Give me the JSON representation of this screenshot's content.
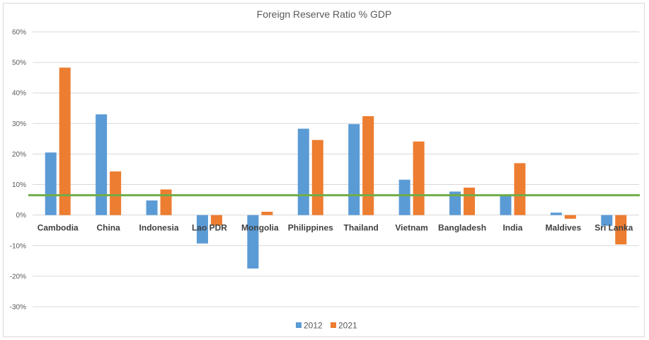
{
  "chart_data": {
    "type": "bar",
    "title": "Foreign Reserve Ratio % GDP",
    "xlabel": "",
    "ylabel": "",
    "categories": [
      "Cambodia",
      "China",
      "Indonesia",
      "Lao PDR",
      "Mongolia",
      "Philippines",
      "Thailand",
      "Vietnam",
      "Bangladesh",
      "India",
      "Maldives",
      "Sri Lanka"
    ],
    "series": [
      {
        "name": "2012",
        "color": "#5b9bd5",
        "values": [
          20.5,
          33.0,
          4.8,
          -9.3,
          -17.5,
          28.3,
          29.8,
          11.6,
          7.7,
          6.6,
          0.8,
          -3.5
        ]
      },
      {
        "name": "2021",
        "color": "#ed7d31",
        "values": [
          48.3,
          14.3,
          8.4,
          -3.4,
          1.1,
          24.6,
          32.4,
          24.1,
          9.0,
          17.0,
          -1.2,
          -9.6
        ]
      }
    ],
    "ylim": [
      -30,
      60
    ],
    "yticks": [
      -30,
      -20,
      -10,
      0,
      10,
      20,
      30,
      40,
      50,
      60
    ],
    "ytick_labels": [
      "-30%",
      "-20%",
      "-10%",
      "0%",
      "10%",
      "20%",
      "30%",
      "40%",
      "50%",
      "60%"
    ],
    "reference_line": {
      "value": 6.5,
      "color": "#70ad47"
    },
    "grid": true,
    "legend_position": "bottom"
  }
}
